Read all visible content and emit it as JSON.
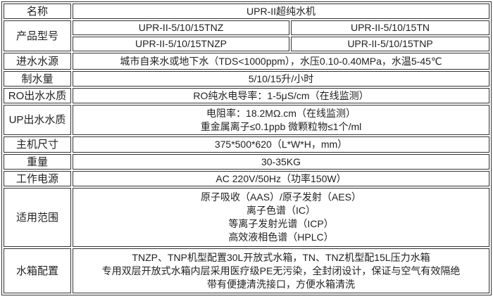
{
  "rows": {
    "name": {
      "label": "名称",
      "value": "UPR-II超纯水机"
    },
    "model": {
      "label": "产品型号",
      "values": [
        "UPR-II-5/10/15TNZ",
        "UPR-II-5/10/15TN",
        "UPR-II-5/10/15TNZP",
        "UPR-II-5/10/15TNP"
      ]
    },
    "feed_water": {
      "label": "进水水源",
      "value": "城市自来水或地下水（TDS<1000ppm），水压0.10-0.40MPa，水温5-45℃"
    },
    "output": {
      "label": "制水量",
      "value": "5/10/15升/小时"
    },
    "ro_quality": {
      "label": "RO出水水质",
      "value": "RO纯水电导率：1-5μS/cm（在线监测）"
    },
    "up_quality": {
      "label": "UP出水水质",
      "lines": [
        "电阻率：18.2MΩ.cm（在线监测）",
        "重金属离子≤0.1ppb 微颗粒物≤1个/ml"
      ]
    },
    "size": {
      "label": "主机尺寸",
      "value": "375*500*620（L*W*H，mm）"
    },
    "weight": {
      "label": "重量",
      "value": "30-35KG"
    },
    "power": {
      "label": "工作电源",
      "value": "AC 220V/50Hz（功率150W）"
    },
    "applications": {
      "label": "适用范围",
      "lines": [
        "原子吸收（AAS）/原子发射（AES）",
        "离子色谱（IC）",
        "等离子发射光谱（ICP）",
        "高效液相色谱（HPLC）"
      ]
    },
    "tank": {
      "label": "水箱配置",
      "lines": [
        "TNZP、TNP机型配置30L开放式水箱，TN、TNZ机型配15L压力水箱",
        "专用双层开放式水箱内层采用医疗级PE无污染，全封闭设计，保证与空气有效隔绝",
        "带有便捷清洗接口，方便水箱清洗"
      ]
    }
  }
}
